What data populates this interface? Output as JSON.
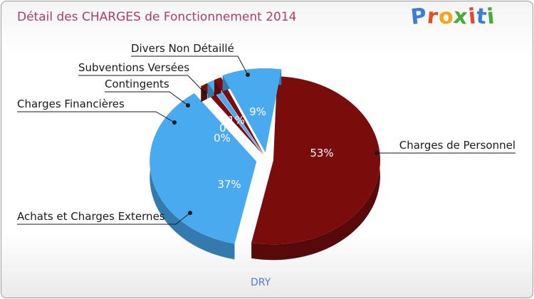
{
  "title": "Détail des CHARGES de Fonctionnement 2014",
  "logo": {
    "letters": [
      "P",
      "r",
      "o",
      "x",
      "i",
      "t",
      "i"
    ],
    "colors": [
      "#3a7fd5",
      "#e34b2a",
      "#f2a61b",
      "#4aa83c",
      "#e34b2a",
      "#3a7fd5",
      "#4aa83c"
    ]
  },
  "city": "DRY",
  "colors": {
    "dark_red": "#7a0c0c",
    "light_blue": "#4aaaf0"
  },
  "chart_data": {
    "type": "pie",
    "title": "Détail des CHARGES de Fonctionnement 2014",
    "slices": [
      {
        "label": "Charges de Personnel",
        "value": 53,
        "pct_label": "53%",
        "color": "#7a0c0c"
      },
      {
        "label": "Achats et Charges Externes",
        "value": 37,
        "pct_label": "37%",
        "color": "#4aaaf0"
      },
      {
        "label": "Charges Financières",
        "value": 0.5,
        "pct_label": "0%",
        "color": "#7a0c0c"
      },
      {
        "label": "Contingents",
        "value": 0.5,
        "pct_label": "0%",
        "color": "#4aaaf0"
      },
      {
        "label": "Subventions Versées",
        "value": 0.5,
        "pct_label": "1%",
        "color": "#7a0c0c"
      },
      {
        "label": "Divers Non Détaillé",
        "value": 9,
        "pct_label": "9%",
        "color": "#4aaaf0"
      }
    ]
  }
}
